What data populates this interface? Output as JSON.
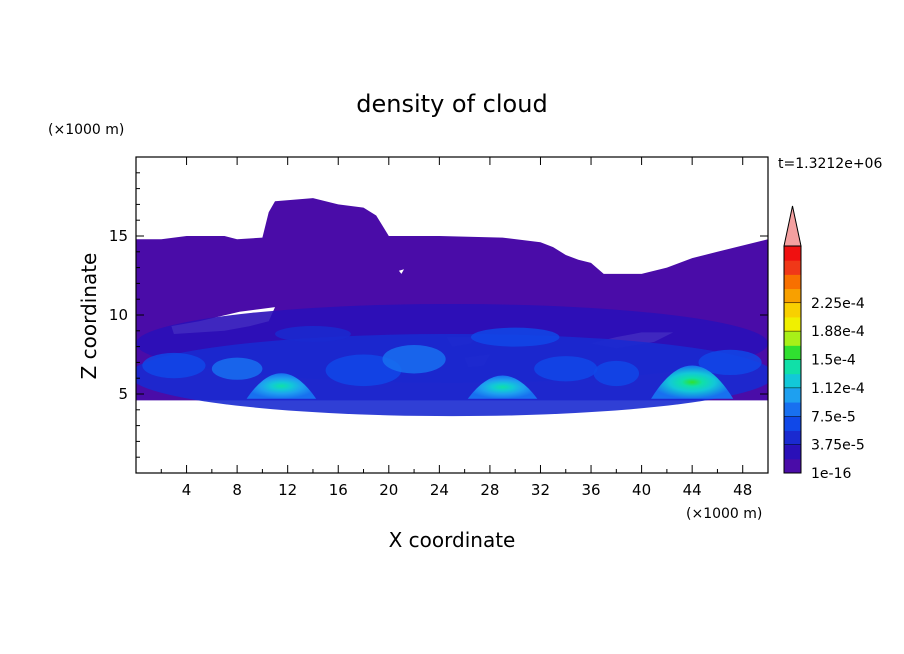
{
  "chart_data": {
    "type": "heatmap",
    "title": "density of cloud",
    "xlabel": "X coordinate",
    "ylabel": "Z coordinate",
    "x_unit": "(×1000 m)",
    "y_unit": "(×1000 m)",
    "time_label": "t=1.3212e+06",
    "xlim": [
      0,
      50
    ],
    "ylim": [
      0,
      20
    ],
    "x_ticks": [
      4,
      8,
      12,
      16,
      20,
      24,
      28,
      32,
      36,
      40,
      44,
      48
    ],
    "y_ticks": [
      5,
      10,
      15
    ],
    "colorbar": {
      "labels": [
        "2.25e-4",
        "1.88e-4",
        "1.5e-4",
        "1.12e-4",
        "7.5e-5",
        "3.75e-5",
        "1e-16"
      ],
      "colors": [
        "#4a0ca8",
        "#2a10b8",
        "#1a2ad0",
        "#1048e8",
        "#1870f0",
        "#1ea0f0",
        "#12c8d8",
        "#10e0a8",
        "#30e030",
        "#a8f018",
        "#f0f000",
        "#f8d000",
        "#f8a000",
        "#f87000",
        "#f03818",
        "#f01010"
      ],
      "extend_color": "#f4a0a0"
    },
    "background_color": "#ffffff",
    "cloud_region": {
      "top_outline": [
        [
          0,
          14.8
        ],
        [
          2,
          14.8
        ],
        [
          4,
          15.0
        ],
        [
          7,
          15.0
        ],
        [
          8,
          14.8
        ],
        [
          10,
          14.9
        ],
        [
          10.5,
          16.5
        ],
        [
          11,
          17.2
        ],
        [
          14,
          17.4
        ],
        [
          16,
          17.0
        ],
        [
          18,
          16.8
        ],
        [
          19,
          16.3
        ],
        [
          20,
          15.0
        ],
        [
          24,
          15.0
        ],
        [
          29,
          14.9
        ],
        [
          32,
          14.6
        ],
        [
          33,
          14.3
        ],
        [
          34,
          13.8
        ],
        [
          35,
          13.5
        ],
        [
          36,
          13.3
        ],
        [
          37,
          12.6
        ],
        [
          40,
          12.6
        ],
        [
          42,
          13.0
        ],
        [
          44,
          13.6
        ],
        [
          46,
          14.0
        ],
        [
          48,
          14.4
        ],
        [
          50,
          14.8
        ]
      ],
      "bottom_z": 4.6
    },
    "intensity_cores": [
      {
        "x": 11.5,
        "z": 6.2,
        "peak": "1.12e-4"
      },
      {
        "x": 29.0,
        "z": 6.0,
        "peak": "1.12e-4"
      },
      {
        "x": 44.0,
        "z": 6.6,
        "peak": "1.5e-4"
      }
    ]
  }
}
